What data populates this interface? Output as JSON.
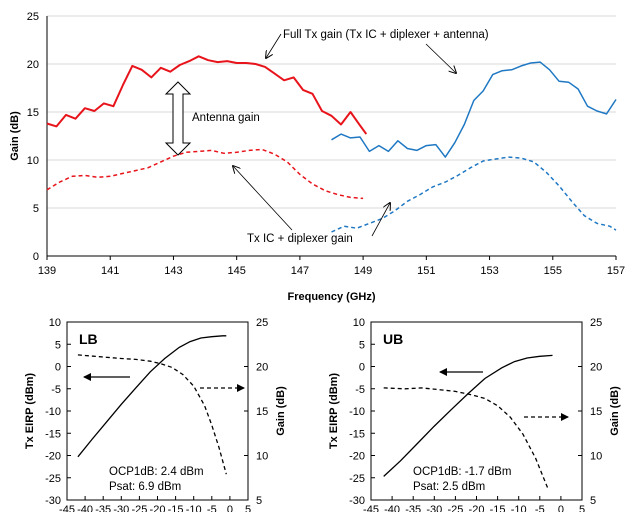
{
  "chart_data": [
    {
      "type": "line",
      "title": "",
      "xlabel": "Frequency (GHz)",
      "ylabel": "Gain (dB)",
      "xlim": [
        139,
        157
      ],
      "ylim": [
        0,
        25
      ],
      "xticks": [
        139,
        141,
        143,
        145,
        147,
        149,
        151,
        153,
        155,
        157
      ],
      "yticks": [
        0,
        5,
        10,
        15,
        20,
        25
      ],
      "grid": "horizontal",
      "series": [
        {
          "band": "LB",
          "quantity": "full-tx-gain",
          "color": "#e8141b",
          "dash": "solid",
          "x": [
            139,
            139.3,
            139.6,
            139.9,
            140.2,
            140.5,
            140.8,
            141.1,
            141.4,
            141.7,
            142,
            142.3,
            142.6,
            142.9,
            143.2,
            143.5,
            143.8,
            144.1,
            144.4,
            144.7,
            145,
            145.3,
            145.6,
            145.9,
            146.2,
            146.5,
            146.8,
            147.1,
            147.4,
            147.7,
            148,
            148.3,
            148.6,
            148.9,
            149.1
          ],
          "y": [
            13.8,
            13.5,
            14.7,
            14.3,
            15.4,
            15.1,
            15.9,
            15.6,
            17.8,
            19.8,
            19.4,
            18.6,
            19.6,
            19.2,
            19.9,
            20.3,
            20.8,
            20.4,
            20.2,
            20.3,
            20.1,
            20.1,
            20,
            19.7,
            19,
            18.3,
            18.6,
            17.3,
            16.9,
            15.1,
            14.6,
            13.7,
            15,
            13.6,
            12.7
          ]
        },
        {
          "band": "UB",
          "quantity": "full-tx-gain",
          "color": "#1f78c3",
          "dash": "solid",
          "x": [
            148,
            148.3,
            148.6,
            148.9,
            149.2,
            149.5,
            149.8,
            150.1,
            150.4,
            150.7,
            151,
            151.3,
            151.6,
            151.9,
            152.2,
            152.5,
            152.8,
            153.1,
            153.4,
            153.7,
            154,
            154.3,
            154.6,
            154.9,
            155.2,
            155.5,
            155.8,
            156.1,
            156.4,
            156.7,
            157
          ],
          "y": [
            12.1,
            12.7,
            12.3,
            12.4,
            10.9,
            11.5,
            10.9,
            12,
            11.2,
            11,
            11.5,
            11.6,
            10.3,
            11.8,
            13.7,
            16.2,
            17.2,
            18.9,
            19.3,
            19.4,
            19.8,
            20.1,
            20.2,
            19.4,
            18.2,
            18.1,
            17.4,
            15.6,
            15.1,
            14.8,
            16.3
          ]
        },
        {
          "band": "LB",
          "quantity": "tx-ic-plus-diplexer-gain",
          "color": "#e8141b",
          "dash": "dashed",
          "x": [
            139,
            139.4,
            139.8,
            140.2,
            140.6,
            141,
            141.4,
            141.8,
            142.2,
            142.6,
            143,
            143.4,
            143.8,
            144.2,
            144.6,
            145,
            145.4,
            145.8,
            146.2,
            146.6,
            147,
            147.4,
            147.8,
            148.2,
            148.6,
            149
          ],
          "y": [
            6.9,
            7.7,
            8.3,
            8.4,
            8.2,
            8.3,
            8.6,
            8.9,
            9.2,
            9.8,
            10.4,
            10.8,
            10.9,
            11,
            10.7,
            10.8,
            11,
            11.1,
            10.6,
            9.8,
            8.5,
            7.5,
            6.8,
            6.4,
            6.1,
            6
          ]
        },
        {
          "band": "UB",
          "quantity": "tx-ic-plus-diplexer-gain",
          "color": "#1f78c3",
          "dash": "dashed",
          "x": [
            148,
            148.4,
            148.8,
            149.2,
            149.6,
            150,
            150.4,
            150.8,
            151.2,
            151.6,
            152,
            152.4,
            152.8,
            153.2,
            153.6,
            154,
            154.4,
            154.8,
            155.2,
            155.6,
            156,
            156.4,
            156.8,
            157
          ],
          "y": [
            2.5,
            3.1,
            2.9,
            3.4,
            3.9,
            4.7,
            5.7,
            6.4,
            7.2,
            7.7,
            8.4,
            9.2,
            9.9,
            10.1,
            10.3,
            10.2,
            9.8,
            8.7,
            7.3,
            5.7,
            4.2,
            3.4,
            3.1,
            2.7
          ]
        }
      ],
      "annotations": {
        "full_gain": "Full Tx gain (Tx IC + diplexer + antenna)",
        "antenna_gain": "Antenna gain",
        "ic_gain": "Tx IC + diplexer gain"
      }
    },
    {
      "type": "line",
      "title": "LB",
      "xlabel": "Tx input power (dBm)",
      "ylabel": "Tx  EIRP (dBm)",
      "y2label": "Gain (dB)",
      "xlim": [
        -45,
        5
      ],
      "ylim": [
        -30,
        10
      ],
      "y2lim": [
        5,
        25
      ],
      "xticks": [
        -45,
        -40,
        -35,
        -30,
        -25,
        -20,
        -15,
        -10,
        -5,
        0,
        5
      ],
      "yticks": [
        -30,
        -25,
        -20,
        -15,
        -10,
        -5,
        0,
        5,
        10
      ],
      "y2ticks": [
        5,
        10,
        15,
        20,
        25
      ],
      "series": [
        {
          "quantity": "eirp",
          "axis": "left",
          "dash": "solid",
          "x": [
            -42,
            -38,
            -34,
            -30,
            -26,
            -22,
            -18,
            -14,
            -11,
            -8,
            -5,
            -2,
            -1
          ],
          "y": [
            -20.3,
            -16.3,
            -12.4,
            -8.5,
            -4.8,
            -1.2,
            1.8,
            4.3,
            5.6,
            6.4,
            6.7,
            6.9,
            6.9
          ]
        },
        {
          "quantity": "gain",
          "axis": "right",
          "dash": "dashed",
          "x": [
            -42,
            -36,
            -30,
            -26,
            -22,
            -19,
            -16,
            -13,
            -10,
            -7,
            -5,
            -3,
            -1
          ],
          "y": [
            21.3,
            21.1,
            20.9,
            20.8,
            20.6,
            20.3,
            19.9,
            19.1,
            17.8,
            15.6,
            13.4,
            10.9,
            7.9
          ]
        }
      ],
      "annotations": {
        "ocp": "OCP1dB: 2.4 dBm",
        "psat": "Psat: 6.9 dBm"
      }
    },
    {
      "type": "line",
      "title": "UB",
      "xlabel": "Tx input power (dBm)",
      "ylabel": "Tx  EIRP (dBm)",
      "y2label": "Gain (dB)",
      "xlim": [
        -45,
        5
      ],
      "ylim": [
        -30,
        10
      ],
      "y2lim": [
        5,
        25
      ],
      "xticks": [
        -45,
        -40,
        -35,
        -30,
        -25,
        -20,
        -15,
        -10,
        -5,
        0,
        5
      ],
      "yticks": [
        -30,
        -25,
        -20,
        -15,
        -10,
        -5,
        0,
        5,
        10
      ],
      "y2ticks": [
        5,
        10,
        15,
        20,
        25
      ],
      "series": [
        {
          "quantity": "eirp",
          "axis": "left",
          "dash": "solid",
          "x": [
            -42,
            -38,
            -34,
            -30,
            -26,
            -22,
            -18,
            -14,
            -11,
            -8,
            -5,
            -2
          ],
          "y": [
            -24.7,
            -21.2,
            -17.3,
            -13.4,
            -9.7,
            -6.1,
            -2.7,
            -0.3,
            1.1,
            1.9,
            2.3,
            2.5
          ]
        },
        {
          "quantity": "gain",
          "axis": "right",
          "dash": "dashed",
          "x": [
            -42,
            -37,
            -33,
            -29,
            -25,
            -21,
            -18,
            -15,
            -12,
            -9,
            -6,
            -3
          ],
          "y": [
            17.6,
            17.5,
            17.6,
            17.4,
            17.2,
            16.8,
            16.4,
            15.6,
            14.3,
            12.4,
            9.7,
            6.2
          ]
        }
      ],
      "annotations": {
        "ocp": "OCP1dB: -1.7 dBm",
        "psat": "Psat: 2.5 dBm"
      }
    }
  ]
}
